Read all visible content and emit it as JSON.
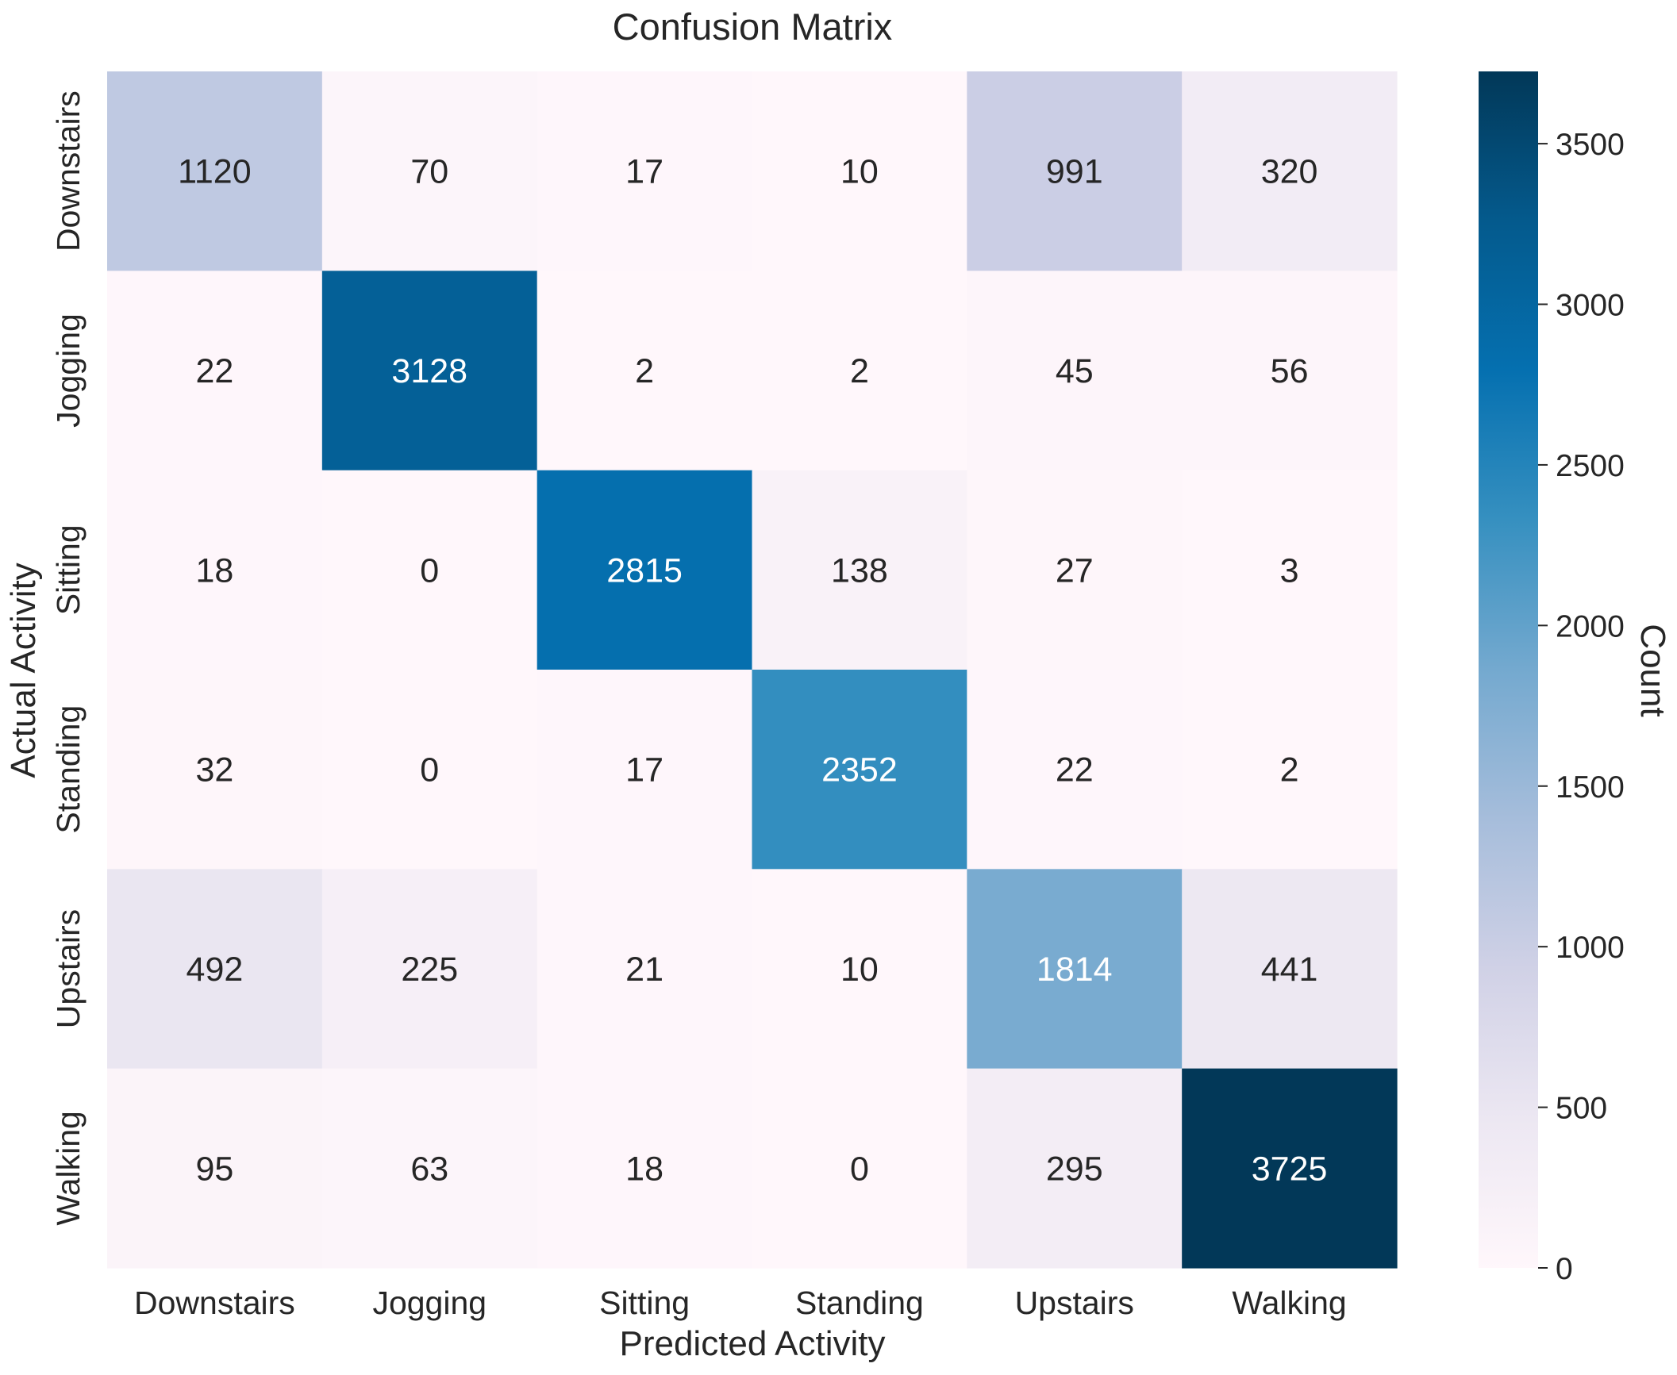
{
  "chart_data": {
    "type": "heatmap",
    "title": "Confusion Matrix",
    "xlabel": "Predicted Activity",
    "ylabel": "Actual Activity",
    "x_categories": [
      "Downstairs",
      "Jogging",
      "Sitting",
      "Standing",
      "Upstairs",
      "Walking"
    ],
    "y_categories": [
      "Downstairs",
      "Jogging",
      "Sitting",
      "Standing",
      "Upstairs",
      "Walking"
    ],
    "values": [
      [
        1120,
        70,
        17,
        10,
        991,
        320
      ],
      [
        22,
        3128,
        2,
        2,
        45,
        56
      ],
      [
        18,
        0,
        2815,
        138,
        27,
        3
      ],
      [
        32,
        0,
        17,
        2352,
        22,
        2
      ],
      [
        492,
        225,
        21,
        10,
        1814,
        441
      ],
      [
        95,
        63,
        18,
        0,
        295,
        3725
      ]
    ],
    "colorbar": {
      "label": "Count",
      "range": [
        0,
        3725
      ],
      "ticks": [
        0,
        500,
        1000,
        1500,
        2000,
        2500,
        3000,
        3500
      ],
      "colormap": "PuBu",
      "colors": [
        "#fff7fb",
        "#ece7f2",
        "#d0d1e6",
        "#a6bddb",
        "#74a9cf",
        "#3690c0",
        "#0570b0",
        "#045a8d",
        "#023858"
      ]
    },
    "annotation_colors": {
      "dark": "#262626",
      "light": "#ffffff"
    }
  }
}
